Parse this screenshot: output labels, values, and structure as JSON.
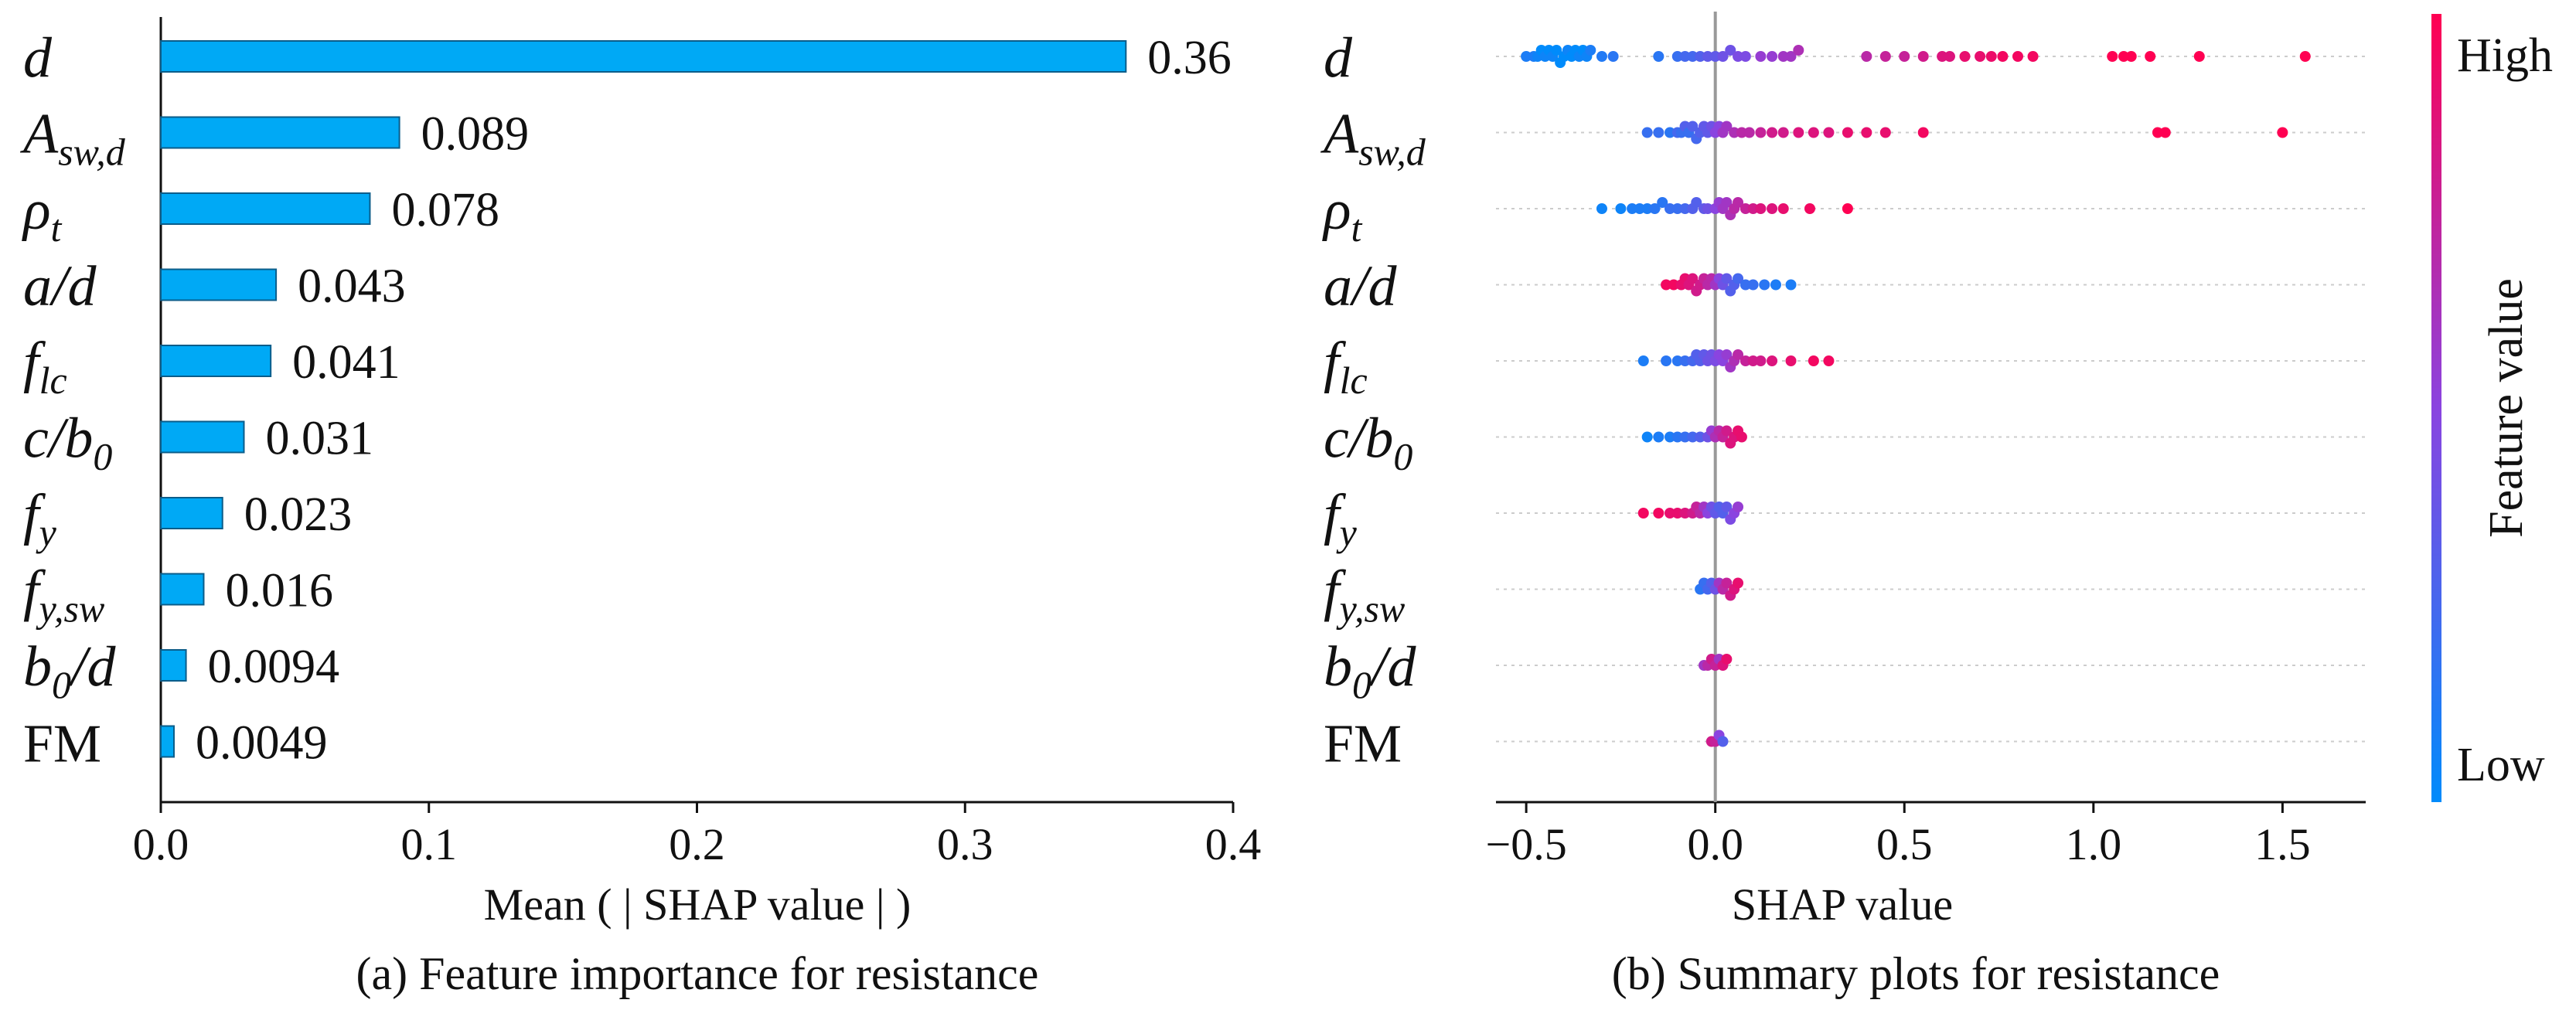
{
  "panel_a": {
    "xlabel": "Mean ( | SHAP value | )",
    "caption": "(a) Feature importance for resistance"
  },
  "panel_b": {
    "xlabel": "SHAP value",
    "caption": "(b) Summary plots for resistance",
    "colorbar": {
      "high": "High",
      "low": "Low",
      "title": "Feature value"
    }
  },
  "colors": {
    "bar": "#00a9f5",
    "bar_edge": "#0b5d8a",
    "high": "#ff0052",
    "low": "#008bfb"
  },
  "chart_data": [
    {
      "type": "bar",
      "orientation": "horizontal",
      "title": "(a) Feature importance for resistance",
      "xlabel": "Mean ( | SHAP value | )",
      "xlim": [
        0,
        0.4
      ],
      "xticks": [
        "0.0",
        "0.1",
        "0.2",
        "0.3",
        "0.4"
      ],
      "categories": [
        {
          "base": "d",
          "sub": ""
        },
        {
          "base": "A",
          "sub": "sw,d"
        },
        {
          "base": "ρ",
          "sub": "t"
        },
        {
          "base": "a/d",
          "sub": ""
        },
        {
          "base": "f",
          "sub": "lc"
        },
        {
          "base": "c/b",
          "sub": "0"
        },
        {
          "base": "f",
          "sub": "y"
        },
        {
          "base": "f",
          "sub": "y,sw"
        },
        {
          "base": "b",
          "sub": "0",
          "tail": "/d"
        },
        {
          "base": "FM",
          "sub": "",
          "plain": true
        }
      ],
      "values": [
        0.36,
        0.089,
        0.078,
        0.043,
        0.041,
        0.031,
        0.023,
        0.016,
        0.0094,
        0.0049
      ],
      "value_labels": [
        "0.36",
        "0.089",
        "0.078",
        "0.043",
        "0.041",
        "0.031",
        "0.023",
        "0.016",
        "0.0094",
        "0.0049"
      ]
    },
    {
      "type": "scatter",
      "subtype": "beeswarm",
      "title": "(b) Summary plots for resistance",
      "xlabel": "SHAP value",
      "xlim": [
        -0.58,
        1.72
      ],
      "xticks": [
        "−0.5",
        "0.0",
        "0.5",
        "1.0",
        "1.5"
      ],
      "features": [
        "d",
        "A_sw,d",
        "ρ_t",
        "a/d",
        "f_lc",
        "c/b_0",
        "f_y",
        "f_y,sw",
        "b_0/d",
        "FM"
      ],
      "series": [
        {
          "feature": "d",
          "points": [
            [
              -0.5,
              0.1
            ],
            [
              -0.48,
              0.1
            ],
            [
              -0.47,
              0.05
            ],
            [
              -0.46,
              0.0
            ],
            [
              -0.45,
              0.05
            ],
            [
              -0.44,
              0.0
            ],
            [
              -0.43,
              0.05
            ],
            [
              -0.42,
              0.0
            ],
            [
              -0.41,
              0.0
            ],
            [
              -0.4,
              0.0
            ],
            [
              -0.39,
              0.05
            ],
            [
              -0.38,
              0.0
            ],
            [
              -0.37,
              0.0
            ],
            [
              -0.36,
              0.05
            ],
            [
              -0.35,
              0.0
            ],
            [
              -0.34,
              0.05
            ],
            [
              -0.33,
              0.1
            ],
            [
              -0.3,
              0.12
            ],
            [
              -0.27,
              0.15
            ],
            [
              -0.15,
              0.15
            ],
            [
              -0.1,
              0.2
            ],
            [
              -0.08,
              0.25
            ],
            [
              -0.06,
              0.25
            ],
            [
              -0.04,
              0.3
            ],
            [
              -0.02,
              0.35
            ],
            [
              0.0,
              0.35
            ],
            [
              0.02,
              0.4
            ],
            [
              0.04,
              0.4
            ],
            [
              0.06,
              0.45
            ],
            [
              0.08,
              0.45
            ],
            [
              0.12,
              0.55
            ],
            [
              0.15,
              0.55
            ],
            [
              0.18,
              0.6
            ],
            [
              0.2,
              0.6
            ],
            [
              0.22,
              0.65
            ],
            [
              0.4,
              0.7
            ],
            [
              0.45,
              0.75
            ],
            [
              0.5,
              0.75
            ],
            [
              0.55,
              0.8
            ],
            [
              0.6,
              0.85
            ],
            [
              0.62,
              0.85
            ],
            [
              0.66,
              0.9
            ],
            [
              0.7,
              0.9
            ],
            [
              0.73,
              0.92
            ],
            [
              0.76,
              0.95
            ],
            [
              0.8,
              0.95
            ],
            [
              0.84,
              0.95
            ],
            [
              1.05,
              1.0
            ],
            [
              1.08,
              1.0
            ],
            [
              1.1,
              1.0
            ],
            [
              1.15,
              1.0
            ],
            [
              1.28,
              1.0
            ],
            [
              1.56,
              1.0
            ]
          ]
        },
        {
          "feature": "A_sw,d",
          "points": [
            [
              -0.18,
              0.2
            ],
            [
              -0.15,
              0.2
            ],
            [
              -0.12,
              0.15
            ],
            [
              -0.1,
              0.25
            ],
            [
              -0.09,
              0.2
            ],
            [
              -0.08,
              0.3
            ],
            [
              -0.07,
              0.2
            ],
            [
              -0.06,
              0.3
            ],
            [
              -0.05,
              0.25
            ],
            [
              -0.04,
              0.3
            ],
            [
              -0.03,
              0.35
            ],
            [
              -0.02,
              0.35
            ],
            [
              -0.01,
              0.4
            ],
            [
              0.0,
              0.5
            ],
            [
              0.01,
              0.5
            ],
            [
              0.02,
              0.6
            ],
            [
              0.03,
              0.6
            ],
            [
              0.05,
              0.65
            ],
            [
              0.07,
              0.7
            ],
            [
              0.09,
              0.7
            ],
            [
              0.12,
              0.75
            ],
            [
              0.15,
              0.8
            ],
            [
              0.18,
              0.8
            ],
            [
              0.22,
              0.85
            ],
            [
              0.26,
              0.85
            ],
            [
              0.3,
              0.85
            ],
            [
              0.35,
              0.9
            ],
            [
              0.4,
              0.9
            ],
            [
              0.45,
              0.9
            ],
            [
              0.55,
              0.95
            ],
            [
              1.17,
              1.0
            ],
            [
              1.19,
              1.0
            ],
            [
              1.5,
              1.0
            ]
          ]
        },
        {
          "feature": "ρ_t",
          "points": [
            [
              -0.3,
              0.05
            ],
            [
              -0.25,
              0.05
            ],
            [
              -0.22,
              0.1
            ],
            [
              -0.2,
              0.1
            ],
            [
              -0.18,
              0.1
            ],
            [
              -0.16,
              0.15
            ],
            [
              -0.14,
              0.15
            ],
            [
              -0.12,
              0.2
            ],
            [
              -0.1,
              0.2
            ],
            [
              -0.08,
              0.25
            ],
            [
              -0.06,
              0.3
            ],
            [
              -0.05,
              0.3
            ],
            [
              -0.03,
              0.35
            ],
            [
              -0.02,
              0.4
            ],
            [
              0.0,
              0.5
            ],
            [
              0.01,
              0.55
            ],
            [
              0.02,
              0.6
            ],
            [
              0.03,
              0.6
            ],
            [
              0.04,
              0.65
            ],
            [
              0.05,
              0.7
            ],
            [
              0.06,
              0.7
            ],
            [
              0.08,
              0.75
            ],
            [
              0.1,
              0.8
            ],
            [
              0.12,
              0.85
            ],
            [
              0.15,
              0.85
            ],
            [
              0.18,
              0.9
            ],
            [
              0.25,
              0.95
            ],
            [
              0.35,
              1.0
            ]
          ]
        },
        {
          "feature": "a/d",
          "points": [
            [
              -0.13,
              0.95
            ],
            [
              -0.11,
              0.95
            ],
            [
              -0.09,
              0.9
            ],
            [
              -0.08,
              0.9
            ],
            [
              -0.07,
              0.85
            ],
            [
              -0.06,
              0.85
            ],
            [
              -0.05,
              0.8
            ],
            [
              -0.04,
              0.8
            ],
            [
              -0.03,
              0.75
            ],
            [
              -0.02,
              0.7
            ],
            [
              -0.01,
              0.7
            ],
            [
              0.0,
              0.6
            ],
            [
              0.01,
              0.5
            ],
            [
              0.02,
              0.4
            ],
            [
              0.03,
              0.35
            ],
            [
              0.04,
              0.3
            ],
            [
              0.05,
              0.3
            ],
            [
              0.06,
              0.25
            ],
            [
              0.08,
              0.2
            ],
            [
              0.1,
              0.2
            ],
            [
              0.13,
              0.15
            ],
            [
              0.16,
              0.1
            ],
            [
              0.2,
              0.1
            ]
          ]
        },
        {
          "feature": "f_lc",
          "points": [
            [
              -0.19,
              0.1
            ],
            [
              -0.13,
              0.15
            ],
            [
              -0.1,
              0.15
            ],
            [
              -0.08,
              0.2
            ],
            [
              -0.06,
              0.25
            ],
            [
              -0.05,
              0.3
            ],
            [
              -0.04,
              0.3
            ],
            [
              -0.03,
              0.35
            ],
            [
              -0.02,
              0.4
            ],
            [
              -0.01,
              0.4
            ],
            [
              0.0,
              0.45
            ],
            [
              0.01,
              0.5
            ],
            [
              0.02,
              0.5
            ],
            [
              0.03,
              0.55
            ],
            [
              0.04,
              0.6
            ],
            [
              0.05,
              0.65
            ],
            [
              0.06,
              0.7
            ],
            [
              0.08,
              0.75
            ],
            [
              0.1,
              0.8
            ],
            [
              0.12,
              0.8
            ],
            [
              0.15,
              0.85
            ],
            [
              0.2,
              0.9
            ],
            [
              0.26,
              0.95
            ],
            [
              0.3,
              0.95
            ]
          ]
        },
        {
          "feature": "c/b_0",
          "points": [
            [
              -0.18,
              0.05
            ],
            [
              -0.15,
              0.1
            ],
            [
              -0.12,
              0.1
            ],
            [
              -0.1,
              0.15
            ],
            [
              -0.08,
              0.2
            ],
            [
              -0.06,
              0.25
            ],
            [
              -0.04,
              0.3
            ],
            [
              -0.02,
              0.4
            ],
            [
              -0.01,
              0.55
            ],
            [
              0.0,
              0.65
            ],
            [
              0.01,
              0.7
            ],
            [
              0.02,
              0.75
            ],
            [
              0.03,
              0.8
            ],
            [
              0.04,
              0.85
            ],
            [
              0.05,
              0.85
            ],
            [
              0.06,
              0.9
            ],
            [
              0.07,
              0.9
            ]
          ]
        },
        {
          "feature": "f_y",
          "points": [
            [
              -0.19,
              0.95
            ],
            [
              -0.15,
              0.95
            ],
            [
              -0.12,
              0.9
            ],
            [
              -0.1,
              0.9
            ],
            [
              -0.08,
              0.85
            ],
            [
              -0.06,
              0.8
            ],
            [
              -0.05,
              0.75
            ],
            [
              -0.04,
              0.7
            ],
            [
              -0.03,
              0.6
            ],
            [
              -0.02,
              0.5
            ],
            [
              -0.01,
              0.4
            ],
            [
              0.0,
              0.35
            ],
            [
              0.01,
              0.3
            ],
            [
              0.02,
              0.3
            ],
            [
              0.03,
              0.35
            ],
            [
              0.04,
              0.45
            ],
            [
              0.05,
              0.5
            ],
            [
              0.06,
              0.55
            ]
          ]
        },
        {
          "feature": "f_y,sw",
          "points": [
            [
              -0.04,
              0.15
            ],
            [
              -0.03,
              0.2
            ],
            [
              -0.02,
              0.25
            ],
            [
              -0.01,
              0.3
            ],
            [
              0.0,
              0.4
            ],
            [
              0.01,
              0.6
            ],
            [
              0.02,
              0.7
            ],
            [
              0.03,
              0.75
            ],
            [
              0.04,
              0.8
            ],
            [
              0.05,
              0.85
            ],
            [
              0.06,
              0.9
            ]
          ]
        },
        {
          "feature": "b_0/d",
          "points": [
            [
              -0.03,
              0.6
            ],
            [
              -0.02,
              0.7
            ],
            [
              -0.01,
              0.8
            ],
            [
              0.0,
              0.75
            ],
            [
              0.01,
              0.6
            ],
            [
              0.02,
              0.85
            ],
            [
              0.03,
              0.9
            ]
          ]
        },
        {
          "feature": "FM",
          "points": [
            [
              -0.01,
              0.8
            ],
            [
              0.0,
              0.75
            ],
            [
              0.01,
              0.5
            ],
            [
              0.02,
              0.3
            ]
          ]
        }
      ]
    }
  ]
}
